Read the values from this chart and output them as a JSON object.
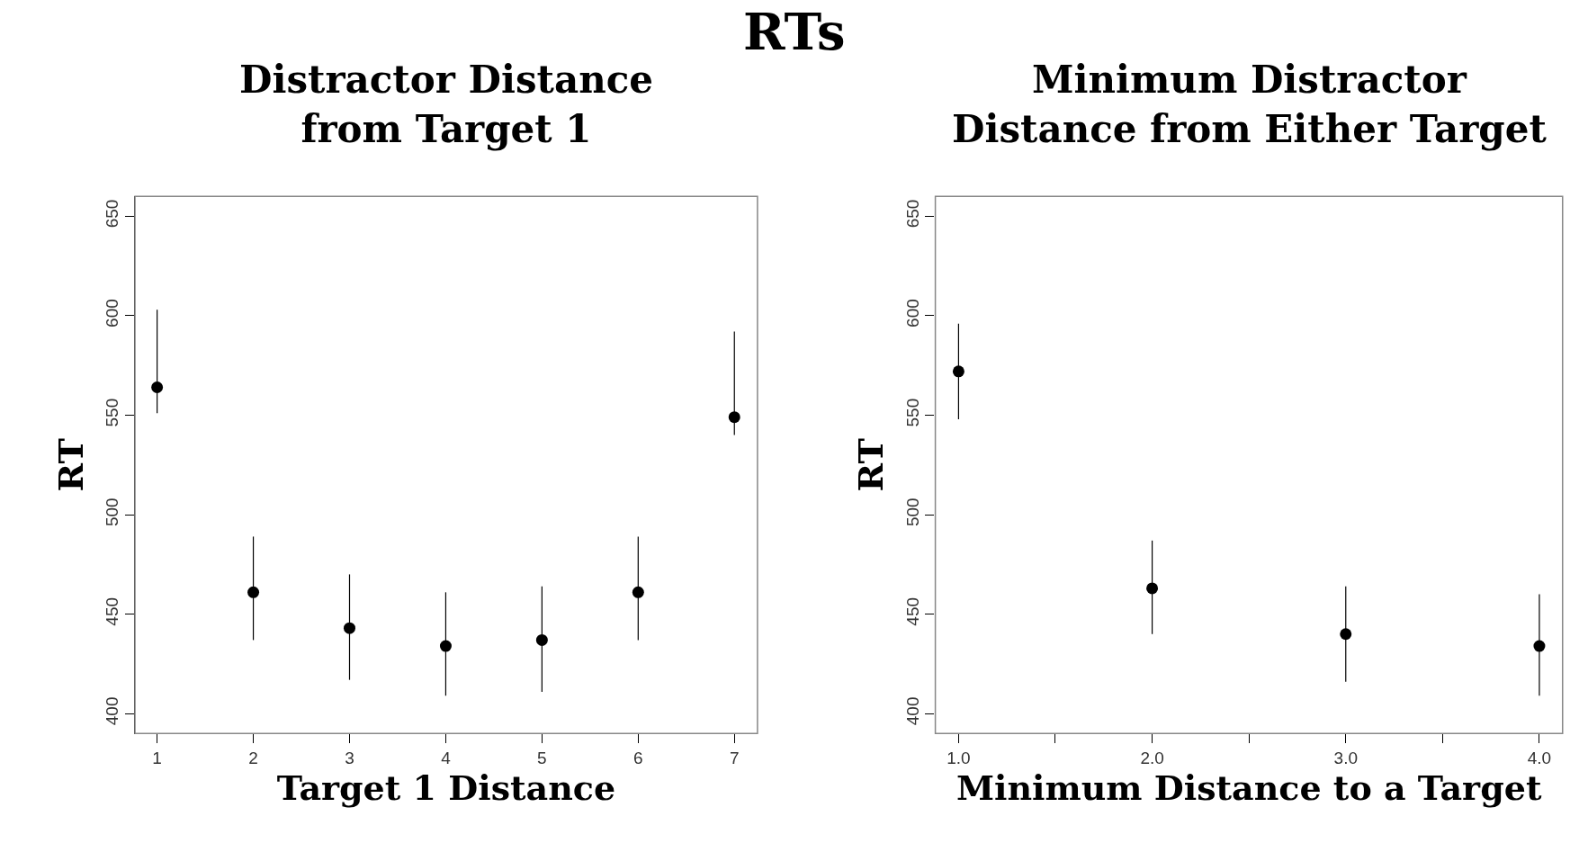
{
  "chart_data": [
    {
      "type": "scatter",
      "title": "Distractor Distance\nfrom Target 1",
      "annotations": [
        "RTs"
      ],
      "xlabel": "Target 1 Distance",
      "ylabel": "RT",
      "marker": "circle",
      "series": [
        {
          "color": "#000000",
          "x": [
            1,
            2,
            3,
            4,
            5,
            6,
            7
          ],
          "values": [
            564,
            461,
            443,
            434,
            437,
            461,
            549
          ],
          "errors": [
            [
              551,
              603
            ],
            [
              437,
              489
            ],
            [
              417,
              470
            ],
            [
              409,
              461
            ],
            [
              411,
              464
            ],
            [
              437,
              489
            ],
            [
              540,
              592
            ]
          ]
        }
      ],
      "xlim": [
        0.77,
        7.24
      ],
      "xticks": [
        1,
        2,
        3,
        4,
        5,
        6,
        7
      ],
      "ylim": [
        390,
        660
      ],
      "yticks": [
        400,
        450,
        500,
        550,
        600,
        650
      ]
    },
    {
      "type": "scatter",
      "title": "Minimum Distractor\nDistance from Either Target",
      "xlabel": "Minimum Distance to a Target",
      "ylabel": "RT",
      "marker": "circle",
      "series": [
        {
          "color": "#000000",
          "x": [
            1,
            2,
            3,
            4
          ],
          "values": [
            572,
            463,
            440,
            434
          ],
          "errors": [
            [
              548,
              596
            ],
            [
              440,
              487
            ],
            [
              416,
              464
            ],
            [
              409,
              460
            ]
          ]
        }
      ],
      "xlim": [
        0.88,
        4.12
      ],
      "xticks": [
        {
          "value": 1,
          "label": "1.0"
        },
        {
          "value": 1.5,
          "label": null
        },
        {
          "value": 2,
          "label": "2.0"
        },
        {
          "value": 2.5,
          "label": null
        },
        {
          "value": 3,
          "label": "3.0"
        },
        {
          "value": 3.5,
          "label": null
        },
        {
          "value": 4,
          "label": "4.0"
        }
      ],
      "ylim": [
        390,
        660
      ],
      "yticks": [
        400,
        450,
        500,
        550,
        600,
        650
      ]
    }
  ]
}
